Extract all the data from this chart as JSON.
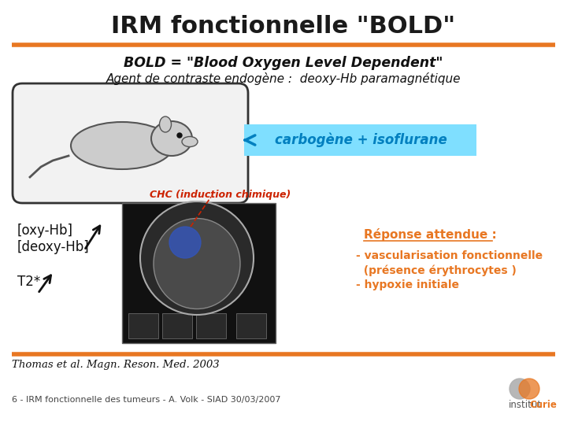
{
  "title": "IRM fonctionnelle \"BOLD\"",
  "title_fontsize": 22,
  "title_color": "#1a1a1a",
  "orange_color": "#E87722",
  "bold_line": "BOLD = \"Blood Oxygen Level Dependent\"",
  "agent_line": "Agent de contraste endogène :  deoxy-Hb paramagnétique",
  "carbogene_text": "carbogène + isoflurane",
  "carbogene_bg": "#7FDFFF",
  "carbogene_text_color": "#007FBF",
  "chc_text": "CHC (induction chimique)",
  "chc_color": "#CC2200",
  "oxy_hb_text": "[oxy-Hb]",
  "deoxy_hb_text": "[deoxy-Hb]",
  "t2_text": "T2*",
  "reponse_title": "Réponse attendue :",
  "reponse_line1": "- vascularisation fonctionnelle",
  "reponse_line2": "  (présence érythrocytes )",
  "reponse_line3": "- hypoxie initiale",
  "reponse_color": "#E87722",
  "reference_text": "Thomas et al. Magn. Reson. Med. 2003",
  "footer_text": "6 - IRM fonctionnelle des tumeurs - A. Volk - SIAD 30/03/2007",
  "curie_text1": "institut",
  "curie_text2": "Curie",
  "bg_color": "#FFFFFF"
}
